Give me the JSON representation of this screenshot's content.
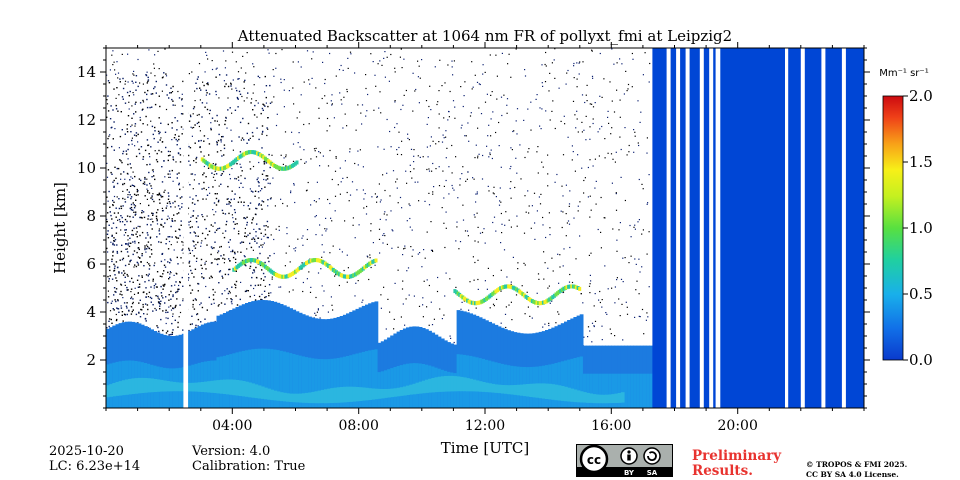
{
  "chart_data": {
    "type": "heatmap",
    "title": "Attenuated Backscatter at 1064 nm FR of pollyxt_fmi at Leipzig2",
    "xlabel": "Time [UTC]",
    "ylabel": "Height [km]",
    "x_ticks": [
      "04:00",
      "08:00",
      "12:00",
      "16:00",
      "20:00"
    ],
    "x_tick_hours": [
      4,
      8,
      12,
      16,
      20
    ],
    "xlim_hours": [
      0,
      24
    ],
    "y_ticks": [
      2,
      4,
      6,
      8,
      10,
      12,
      14
    ],
    "ylim": [
      0,
      15
    ],
    "colorbar": {
      "unit": "Mm⁻¹ sr⁻¹",
      "ticks": [
        "0.0",
        "0.5",
        "1.0",
        "1.5",
        "2.0"
      ],
      "tick_values": [
        0.0,
        0.5,
        1.0,
        1.5,
        2.0
      ],
      "range": [
        0,
        2
      ],
      "colormap": [
        "#0a2a8c",
        "#1e5ee0",
        "#19a7e8",
        "#28c9a6",
        "#54e04c",
        "#b8ef2a",
        "#f5f218",
        "#f7a21a",
        "#ef3e1a",
        "#c80d10"
      ]
    },
    "gap_hours": [
      [
        2.45,
        2.6
      ]
    ],
    "rain_blocks_hours": [
      [
        17.3,
        19.3
      ],
      [
        19.45,
        21.5
      ],
      [
        21.6,
        24
      ]
    ],
    "cloud_layers": [
      {
        "start": 4.0,
        "end": 8.5,
        "base_km": 5.9
      },
      {
        "start": 11.0,
        "end": 15.0,
        "base_km": 4.8
      },
      {
        "start": 3.0,
        "end": 6.0,
        "base_km": 10.4
      }
    ],
    "colors": {
      "background": "#ffffff",
      "rain": "#0046d5",
      "boundary_layer": "#1c7be0"
    }
  },
  "footer": {
    "date": "2025-10-20",
    "lc": "LC: 6.23e+14",
    "version": "Version: 4.0",
    "calibration": "Calibration: True",
    "preliminary_line1": "Preliminary",
    "preliminary_line2": "Results.",
    "copyright_line1": "© TROPOS & FMI 2025.",
    "copyright_line2": "CC BY SA 4.0 License.",
    "cc_by": "BY",
    "cc_sa": "SA"
  }
}
